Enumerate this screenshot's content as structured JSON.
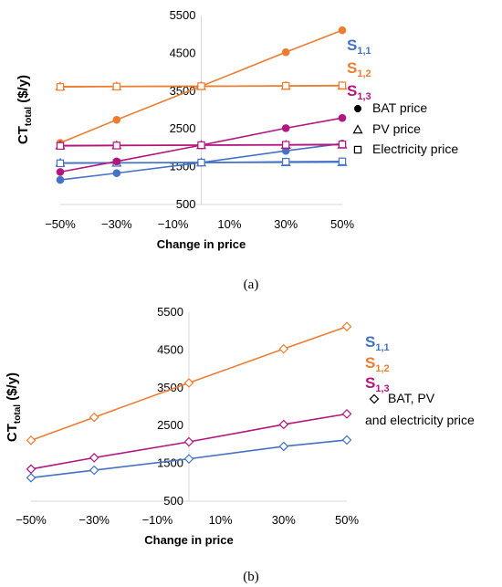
{
  "chart_data": [
    {
      "type": "line",
      "panel_label": "(a)",
      "categories": [
        "−50%",
        "−30%",
        "−10%",
        "10%",
        "30%",
        "50%"
      ],
      "x": [
        -50,
        -30,
        0,
        30,
        50
      ],
      "xlabel": "Change in price",
      "ylabel": {
        "main": "CT",
        "sub": "total",
        "unit": " ($/y)"
      },
      "ylim": [
        500,
        5500
      ],
      "yticks": [
        500,
        1500,
        2500,
        3500,
        4500,
        5500
      ],
      "xlim": [
        -50,
        50
      ],
      "grid": false,
      "legend_position": "right",
      "labels": [
        {
          "base": "S",
          "sub": "1,1",
          "color": "#4472c4"
        },
        {
          "base": "S",
          "sub": "1,2",
          "color": "#ed7d31"
        },
        {
          "base": "S",
          "sub": "1,3",
          "color": "#b3167f"
        }
      ],
      "markers_legend": [
        {
          "marker": "circle",
          "label": "BAT price"
        },
        {
          "marker": "triangle",
          "label": "PV price"
        },
        {
          "marker": "square",
          "label": "Electricity price"
        }
      ],
      "series": [
        {
          "color": "#4472c4",
          "marker": "circle",
          "values": [
            1150,
            1330,
            1610,
            1920,
            2110
          ]
        },
        {
          "color": "#4472c4",
          "marker": "triangle",
          "values": [
            1600,
            1605,
            1610,
            1615,
            1620
          ]
        },
        {
          "color": "#4472c4",
          "marker": "square",
          "values": [
            1590,
            1600,
            1610,
            1630,
            1640
          ]
        },
        {
          "color": "#ed7d31",
          "marker": "circle",
          "values": [
            2130,
            2740,
            3630,
            4530,
            5110
          ]
        },
        {
          "color": "#ed7d31",
          "marker": "triangle",
          "values": [
            3620,
            3625,
            3630,
            3635,
            3640
          ]
        },
        {
          "color": "#ed7d31",
          "marker": "square",
          "values": [
            3610,
            3620,
            3630,
            3640,
            3650
          ]
        },
        {
          "color": "#b3167f",
          "marker": "circle",
          "values": [
            1360,
            1640,
            2070,
            2520,
            2790
          ]
        },
        {
          "color": "#b3167f",
          "marker": "triangle",
          "values": [
            2060,
            2065,
            2070,
            2075,
            2080
          ]
        },
        {
          "color": "#b3167f",
          "marker": "square",
          "values": [
            2050,
            2060,
            2070,
            2080,
            2090
          ]
        }
      ]
    },
    {
      "type": "line",
      "panel_label": "(b)",
      "categories": [
        "−50%",
        "−30%",
        "−10%",
        "10%",
        "30%",
        "50%"
      ],
      "x": [
        -50,
        -30,
        0,
        30,
        50
      ],
      "xlabel": "Change in price",
      "ylabel": {
        "main": "CT",
        "sub": "total",
        "unit": " ($/y)"
      },
      "ylim": [
        500,
        5500
      ],
      "yticks": [
        500,
        1500,
        2500,
        3500,
        4500,
        5500
      ],
      "xlim": [
        -50,
        50
      ],
      "grid": false,
      "legend_position": "right",
      "labels": [
        {
          "base": "S",
          "sub": "1,1",
          "color": "#4472c4"
        },
        {
          "base": "S",
          "sub": "1,2",
          "color": "#ed7d31"
        },
        {
          "base": "S",
          "sub": "1,3",
          "color": "#b3167f"
        }
      ],
      "markers_legend": [
        {
          "marker": "diamond",
          "label": "BAT, PV"
        },
        {
          "marker": "none",
          "label": "and electricity price"
        }
      ],
      "series": [
        {
          "color": "#4472c4",
          "marker": "diamond",
          "values": [
            1120,
            1320,
            1620,
            1950,
            2120
          ]
        },
        {
          "color": "#ed7d31",
          "marker": "diamond",
          "values": [
            2110,
            2720,
            3630,
            4530,
            5120
          ]
        },
        {
          "color": "#b3167f",
          "marker": "diamond",
          "values": [
            1350,
            1650,
            2070,
            2530,
            2810
          ]
        }
      ]
    }
  ]
}
